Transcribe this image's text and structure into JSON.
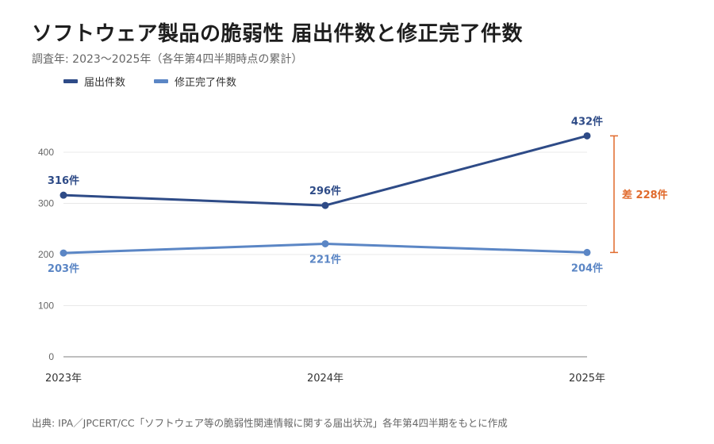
{
  "title": "ソフトウェア製品の脆弱性 届出件数と修正完了件数",
  "subtitle": "調査年: 2023〜2025年（各年第4四半期時点の累計）",
  "source": "出典: IPA／JPCERT/CC「ソフトウェア等の脆弱性関連情報に関する届出状況」各年第4四半期をもとに作成",
  "colors": {
    "series1": "#2e4b87",
    "series2": "#5b86c5",
    "gap": "#e06a2c",
    "grid": "#e8e8e8",
    "axis": "#999999"
  },
  "chart_data": {
    "type": "line",
    "x": [
      "2023年",
      "2024年",
      "2025年"
    ],
    "ylim": [
      0,
      450
    ],
    "yticks": [
      "0",
      "100",
      "200",
      "300",
      "400"
    ],
    "grid": true,
    "legend_position": "top-left",
    "series": [
      {
        "name": "届出件数",
        "values": [
          316,
          296,
          432
        ],
        "labels": [
          "316件",
          "296件",
          "432件"
        ]
      },
      {
        "name": "修正完了件数",
        "values": [
          203,
          221,
          204
        ],
        "labels": [
          "203件",
          "221件",
          "204件"
        ]
      }
    ],
    "annotation": {
      "text": "差 228件",
      "between": [
        432,
        204
      ],
      "at": "2025年"
    }
  }
}
